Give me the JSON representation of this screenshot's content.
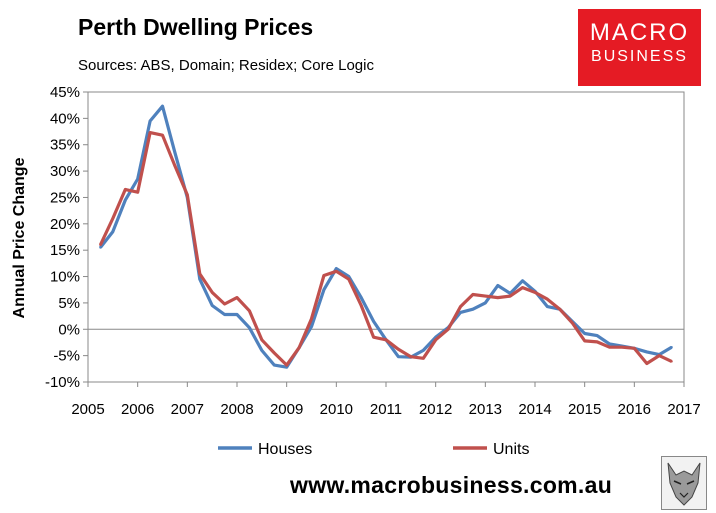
{
  "header": {
    "title": "Perth Dwelling Prices",
    "subtitle": "Sources: ABS, Domain; Residex; Core Logic"
  },
  "logo": {
    "line1": "MACRO",
    "line2": "BUSINESS",
    "color": "#e51b24"
  },
  "footer": {
    "url": "www.macrobusiness.com.au",
    "mascot_icon": "wolf-icon"
  },
  "chart_data": {
    "type": "line",
    "title": "Perth Dwelling Prices",
    "xlabel": "",
    "ylabel": "Annual Price Change",
    "xlim": [
      2005,
      2017
    ],
    "ylim": [
      -10,
      45
    ],
    "x_ticks": [
      2005,
      2006,
      2007,
      2008,
      2009,
      2010,
      2011,
      2012,
      2013,
      2014,
      2015,
      2016,
      2017
    ],
    "y_ticks": [
      -10,
      -5,
      0,
      5,
      10,
      15,
      20,
      25,
      30,
      35,
      40,
      45
    ],
    "y_tick_labels": [
      "-10%",
      "-5%",
      "0%",
      "5%",
      "10%",
      "15%",
      "20%",
      "25%",
      "30%",
      "35%",
      "40%",
      "45%"
    ],
    "legend_position": "bottom",
    "series": [
      {
        "name": "Houses",
        "color": "#4f81bd",
        "x": [
          2005.25,
          2005.5,
          2005.75,
          2006.0,
          2006.25,
          2006.5,
          2006.75,
          2007.0,
          2007.25,
          2007.5,
          2007.75,
          2008.0,
          2008.25,
          2008.5,
          2008.75,
          2009.0,
          2009.25,
          2009.5,
          2009.75,
          2010.0,
          2010.25,
          2010.5,
          2010.75,
          2011.0,
          2011.25,
          2011.5,
          2011.75,
          2012.0,
          2012.25,
          2012.5,
          2012.75,
          2013.0,
          2013.25,
          2013.5,
          2013.75,
          2014.0,
          2014.25,
          2014.5,
          2014.75,
          2015.0,
          2015.25,
          2015.5,
          2015.75,
          2016.0,
          2016.25,
          2016.5,
          2016.75
        ],
        "values": [
          15.5,
          18.5,
          24.5,
          28.5,
          39.5,
          42.3,
          33.5,
          25.0,
          9.5,
          4.5,
          2.8,
          2.8,
          0.3,
          -4.0,
          -6.8,
          -7.2,
          -3.5,
          0.5,
          7.5,
          11.5,
          10.0,
          6.0,
          1.5,
          -2.0,
          -5.2,
          -5.3,
          -4.0,
          -1.5,
          0.3,
          3.2,
          3.8,
          5.0,
          8.3,
          6.8,
          9.2,
          7.2,
          4.3,
          3.8,
          1.5,
          -0.8,
          -1.2,
          -2.8,
          -3.2,
          -3.6,
          -4.3,
          -4.8,
          -3.4
        ]
      },
      {
        "name": "Units",
        "color": "#c0504d",
        "x": [
          2005.25,
          2005.5,
          2005.75,
          2006.0,
          2006.25,
          2006.5,
          2006.75,
          2007.0,
          2007.25,
          2007.5,
          2007.75,
          2008.0,
          2008.25,
          2008.5,
          2008.75,
          2009.0,
          2009.25,
          2009.5,
          2009.75,
          2010.0,
          2010.25,
          2010.5,
          2010.75,
          2011.0,
          2011.25,
          2011.5,
          2011.75,
          2012.0,
          2012.25,
          2012.5,
          2012.75,
          2013.0,
          2013.25,
          2013.5,
          2013.75,
          2014.0,
          2014.25,
          2014.5,
          2014.75,
          2015.0,
          2015.25,
          2015.5,
          2015.75,
          2016.0,
          2016.25,
          2016.5,
          2016.75
        ],
        "values": [
          16.0,
          21.0,
          26.5,
          26.0,
          37.3,
          36.8,
          31.0,
          25.5,
          10.5,
          7.0,
          4.8,
          6.0,
          3.5,
          -2.0,
          -4.5,
          -6.8,
          -3.5,
          2.0,
          10.2,
          11.0,
          9.5,
          4.5,
          -1.5,
          -2.0,
          -3.8,
          -5.2,
          -5.5,
          -2.0,
          0.0,
          4.3,
          6.6,
          6.3,
          6.0,
          6.3,
          7.9,
          7.0,
          5.7,
          3.8,
          1.2,
          -2.2,
          -2.4,
          -3.4,
          -3.4,
          -3.6,
          -6.5,
          -5.0,
          -6.1
        ]
      }
    ]
  }
}
